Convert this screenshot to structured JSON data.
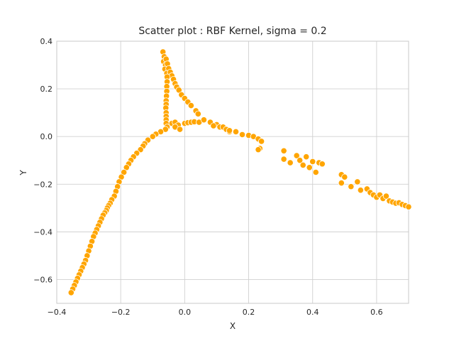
{
  "chart_data": {
    "type": "scatter",
    "title": "Scatter plot : RBF Kernel, sigma = 0.2",
    "xlabel": "X",
    "ylabel": "Y",
    "xlim": [
      -0.4,
      0.7
    ],
    "ylim": [
      -0.7,
      0.4
    ],
    "xticks": [
      -0.4,
      -0.2,
      0.0,
      0.2,
      0.4,
      0.6
    ],
    "xtick_labels": [
      "−0.4",
      "−0.2",
      "0.0",
      "0.2",
      "0.4",
      "0.6"
    ],
    "yticks": [
      -0.6,
      -0.4,
      -0.2,
      0.0,
      0.2,
      0.4
    ],
    "ytick_labels": [
      "−0.6",
      "−0.4",
      "−0.2",
      "0.0",
      "0.2",
      "0.4"
    ],
    "grid": true,
    "marker_color": "#ffa500",
    "points": [
      [
        -0.068,
        0.355
      ],
      [
        -0.064,
        0.335
      ],
      [
        -0.066,
        0.315
      ],
      [
        -0.058,
        0.325
      ],
      [
        -0.06,
        0.3
      ],
      [
        -0.054,
        0.305
      ],
      [
        -0.062,
        0.283
      ],
      [
        -0.05,
        0.285
      ],
      [
        -0.056,
        0.265
      ],
      [
        -0.045,
        0.27
      ],
      [
        -0.04,
        0.255
      ],
      [
        -0.035,
        0.24
      ],
      [
        -0.03,
        0.222
      ],
      [
        -0.025,
        0.208
      ],
      [
        -0.018,
        0.195
      ],
      [
        -0.01,
        0.175
      ],
      [
        0.0,
        0.16
      ],
      [
        0.01,
        0.145
      ],
      [
        0.02,
        0.13
      ],
      [
        0.035,
        0.108
      ],
      [
        0.042,
        0.095
      ],
      [
        -0.055,
        0.25
      ],
      [
        -0.055,
        0.23
      ],
      [
        -0.056,
        0.21
      ],
      [
        -0.056,
        0.19
      ],
      [
        -0.057,
        0.17
      ],
      [
        -0.058,
        0.15
      ],
      [
        -0.058,
        0.135
      ],
      [
        -0.059,
        0.12
      ],
      [
        -0.058,
        0.1
      ],
      [
        -0.058,
        0.085
      ],
      [
        -0.058,
        0.07
      ],
      [
        -0.058,
        0.055
      ],
      [
        -0.055,
        0.04
      ],
      [
        -0.04,
        0.055
      ],
      [
        -0.03,
        0.06
      ],
      [
        -0.02,
        0.048
      ],
      [
        -0.03,
        0.04
      ],
      [
        -0.015,
        0.03
      ],
      [
        -0.06,
        0.03
      ],
      [
        -0.075,
        0.02
      ],
      [
        -0.09,
        0.01
      ],
      [
        -0.1,
        0.0
      ],
      [
        -0.115,
        -0.015
      ],
      [
        -0.125,
        -0.03
      ],
      [
        -0.13,
        -0.04
      ],
      [
        -0.138,
        -0.055
      ],
      [
        -0.15,
        -0.07
      ],
      [
        -0.16,
        -0.085
      ],
      [
        -0.168,
        -0.1
      ],
      [
        -0.175,
        -0.115
      ],
      [
        -0.182,
        -0.13
      ],
      [
        -0.19,
        -0.15
      ],
      [
        -0.198,
        -0.17
      ],
      [
        -0.205,
        -0.19
      ],
      [
        -0.21,
        -0.21
      ],
      [
        -0.215,
        -0.23
      ],
      [
        -0.22,
        -0.25
      ],
      [
        -0.228,
        -0.265
      ],
      [
        -0.233,
        -0.28
      ],
      [
        -0.238,
        -0.29
      ],
      [
        -0.242,
        -0.3
      ],
      [
        -0.245,
        -0.31
      ],
      [
        -0.25,
        -0.32
      ],
      [
        -0.255,
        -0.33
      ],
      [
        -0.26,
        -0.345
      ],
      [
        -0.265,
        -0.36
      ],
      [
        -0.27,
        -0.375
      ],
      [
        -0.275,
        -0.39
      ],
      [
        -0.28,
        -0.405
      ],
      [
        -0.285,
        -0.42
      ],
      [
        -0.29,
        -0.44
      ],
      [
        -0.295,
        -0.46
      ],
      [
        -0.3,
        -0.48
      ],
      [
        -0.305,
        -0.5
      ],
      [
        -0.31,
        -0.52
      ],
      [
        -0.315,
        -0.535
      ],
      [
        -0.32,
        -0.55
      ],
      [
        -0.325,
        -0.565
      ],
      [
        -0.33,
        -0.58
      ],
      [
        -0.335,
        -0.595
      ],
      [
        -0.34,
        -0.61
      ],
      [
        -0.345,
        -0.625
      ],
      [
        -0.35,
        -0.64
      ],
      [
        -0.355,
        -0.655
      ],
      [
        0.0,
        0.055
      ],
      [
        0.01,
        0.058
      ],
      [
        0.02,
        0.06
      ],
      [
        0.03,
        0.062
      ],
      [
        0.045,
        0.06
      ],
      [
        0.06,
        0.07
      ],
      [
        0.08,
        0.06
      ],
      [
        0.1,
        0.05
      ],
      [
        0.11,
        0.04
      ],
      [
        0.12,
        0.04
      ],
      [
        0.13,
        0.03
      ],
      [
        0.14,
        0.02
      ],
      [
        0.16,
        0.02
      ],
      [
        0.18,
        0.01
      ],
      [
        0.2,
        0.005
      ],
      [
        0.215,
        0.0
      ],
      [
        0.23,
        -0.01
      ],
      [
        0.24,
        -0.02
      ],
      [
        0.235,
        -0.05
      ],
      [
        0.23,
        -0.055
      ],
      [
        0.31,
        -0.06
      ],
      [
        0.31,
        -0.095
      ],
      [
        0.33,
        -0.11
      ],
      [
        0.35,
        -0.08
      ],
      [
        0.36,
        -0.1
      ],
      [
        0.37,
        -0.12
      ],
      [
        0.38,
        -0.085
      ],
      [
        0.39,
        -0.13
      ],
      [
        0.4,
        -0.105
      ],
      [
        0.41,
        -0.15
      ],
      [
        0.42,
        -0.11
      ],
      [
        0.43,
        -0.115
      ],
      [
        0.49,
        -0.16
      ],
      [
        0.49,
        -0.195
      ],
      [
        0.5,
        -0.17
      ],
      [
        0.52,
        -0.21
      ],
      [
        0.54,
        -0.19
      ],
      [
        0.55,
        -0.225
      ],
      [
        0.57,
        -0.22
      ],
      [
        0.58,
        -0.235
      ],
      [
        0.59,
        -0.245
      ],
      [
        0.6,
        -0.255
      ],
      [
        0.61,
        -0.245
      ],
      [
        0.62,
        -0.26
      ],
      [
        0.63,
        -0.25
      ],
      [
        0.64,
        -0.27
      ],
      [
        0.65,
        -0.275
      ],
      [
        0.66,
        -0.28
      ],
      [
        0.67,
        -0.278
      ],
      [
        0.68,
        -0.285
      ],
      [
        0.69,
        -0.29
      ],
      [
        0.7,
        -0.295
      ],
      [
        0.09,
        0.045
      ],
      [
        0.14,
        0.025
      ],
      [
        0.18,
        0.008
      ]
    ]
  }
}
